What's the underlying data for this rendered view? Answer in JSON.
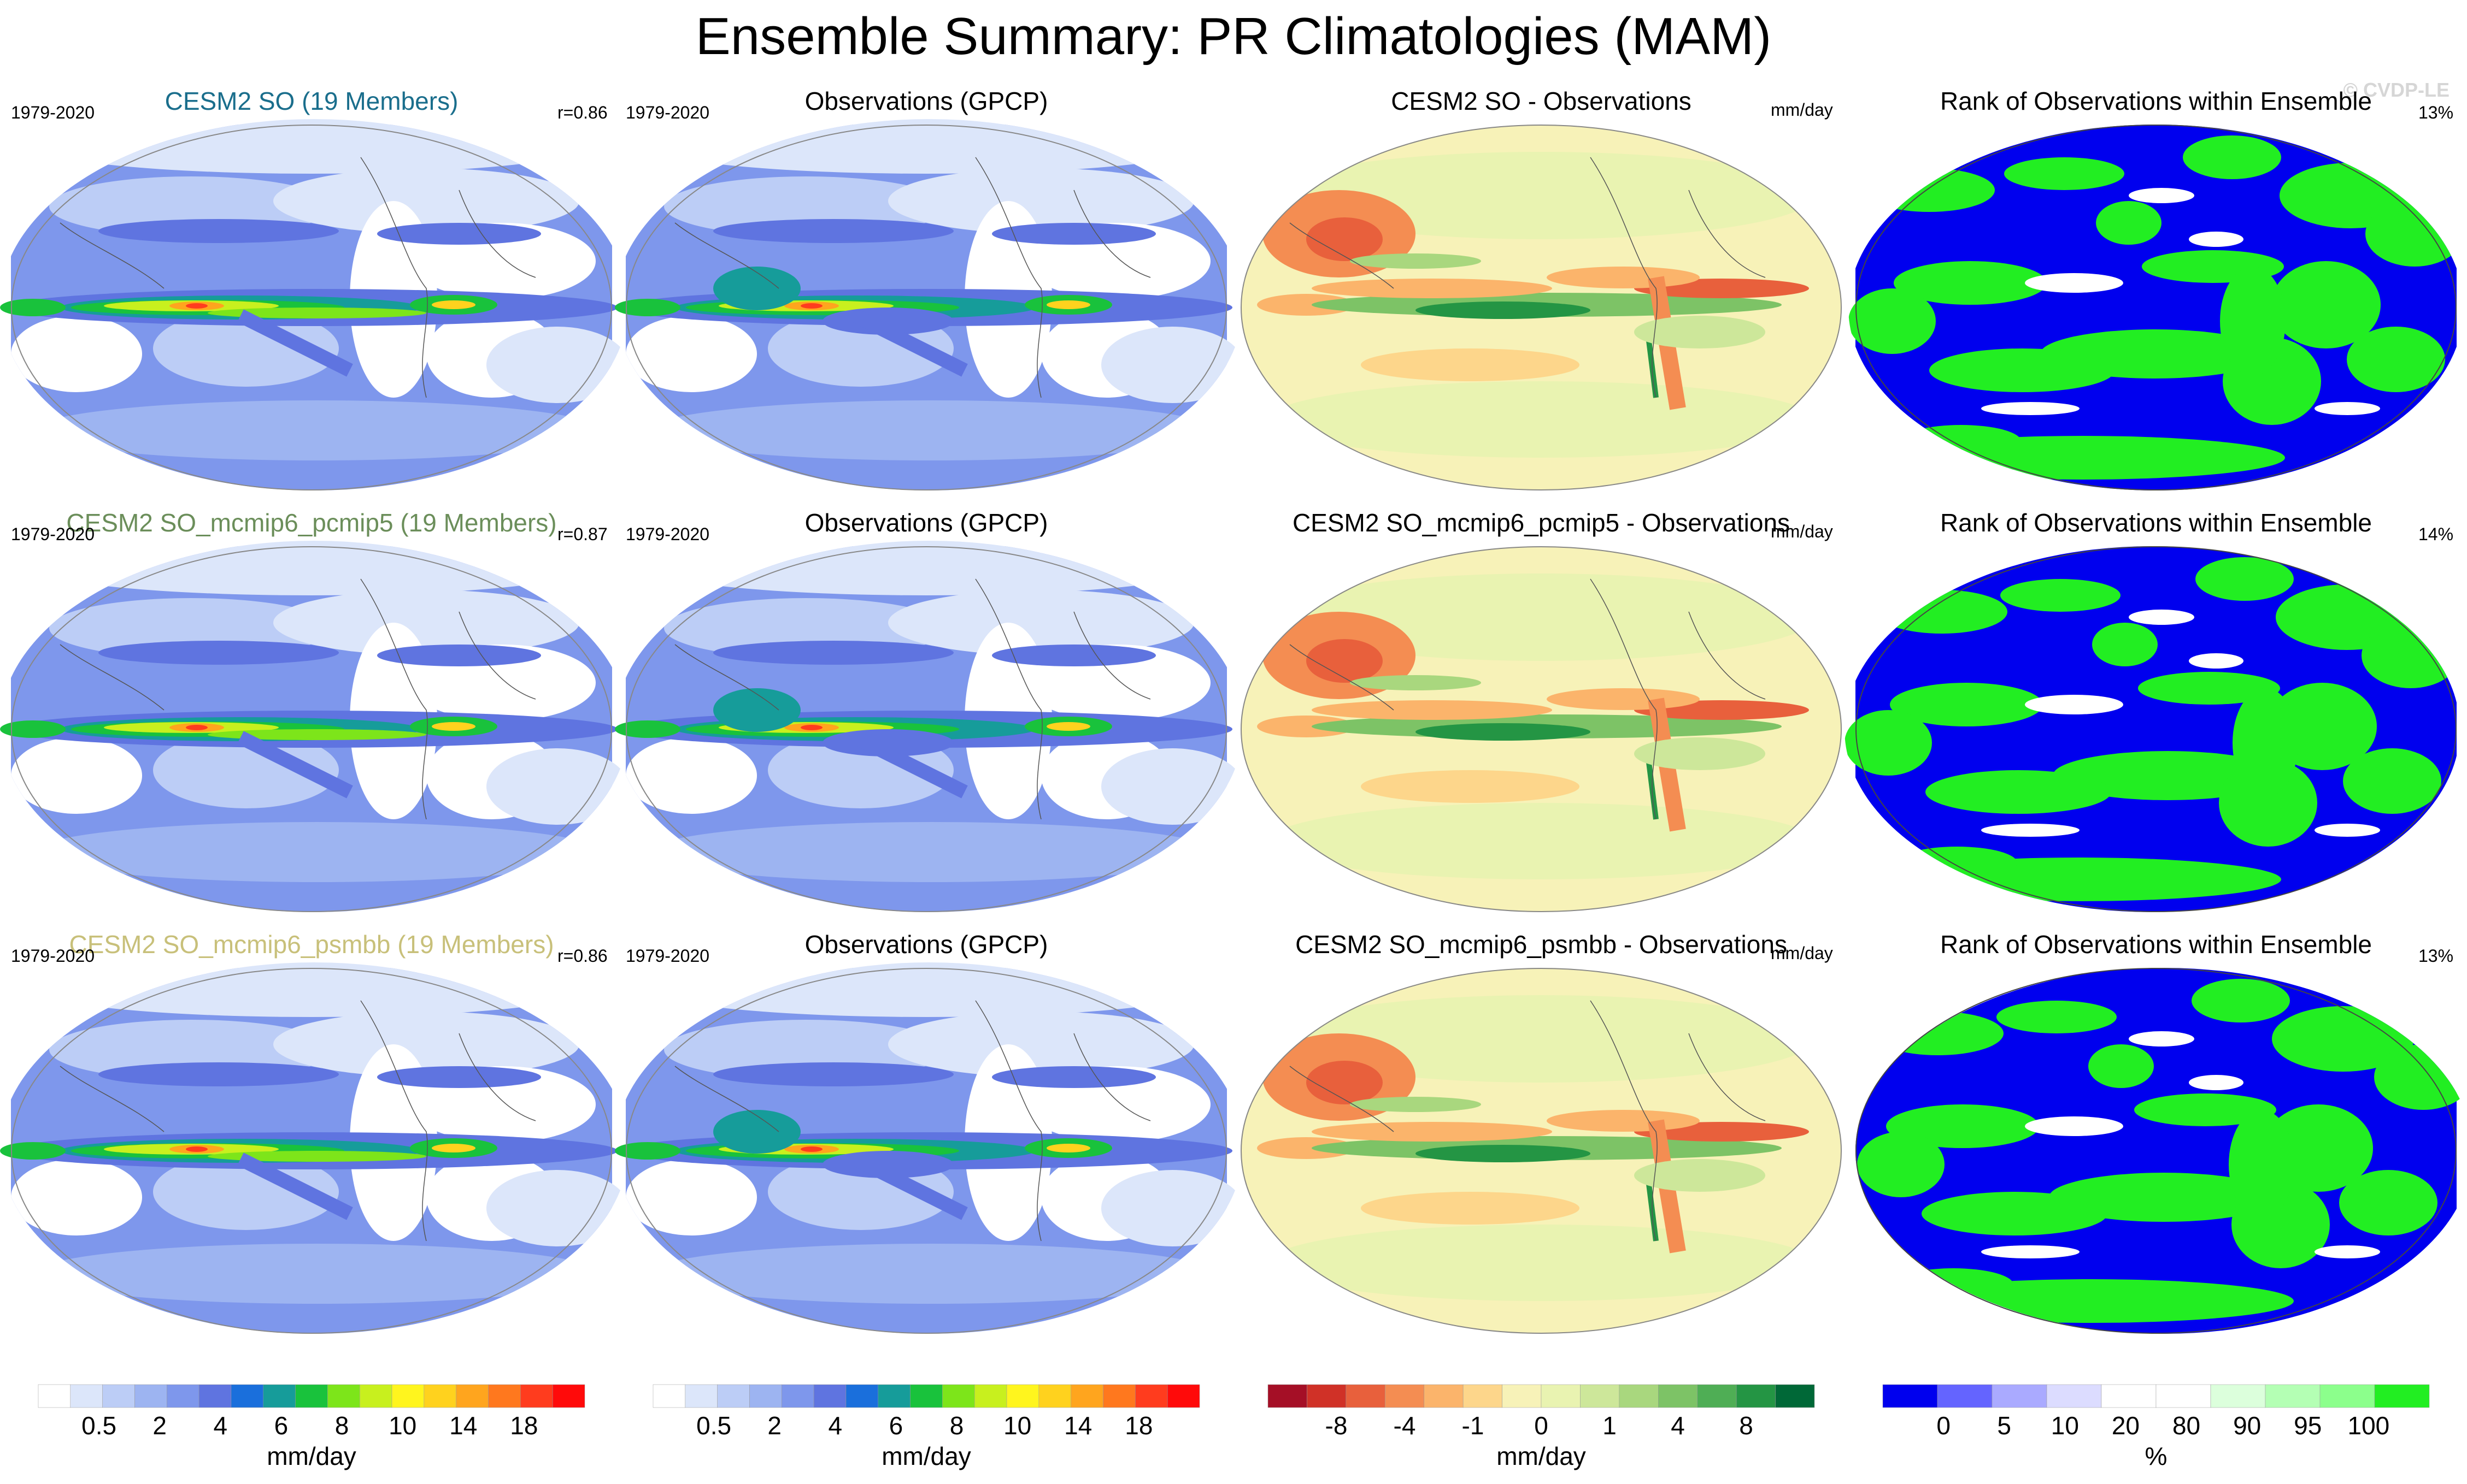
{
  "title": "Ensemble Summary: PR Climatologies (MAM)",
  "watermark": "© CVDP-LE",
  "colors": {
    "row_title_1": "#1a6e8c",
    "row_title_2": "#6b8e5a",
    "row_title_3": "#c8c07a",
    "rank_low": "#0000ee",
    "rank_mid": "#ffffff",
    "rank_high": "#22ee22",
    "diff_neutral": "#f7f2b8"
  },
  "rows": [
    {
      "model_title": "CESM2 SO (19 Members)",
      "model_years": "1979-2020",
      "model_corr": "r=0.86",
      "obs_title": "Observations (GPCP)",
      "obs_years": "1979-2020",
      "diff_title": "CESM2 SO - Observations",
      "diff_units": "mm/day",
      "rank_title": "Rank of Observations within Ensemble",
      "rank_pct": "13%"
    },
    {
      "model_title": "CESM2 SO_mcmip6_pcmip5 (19 Members)",
      "model_years": "1979-2020",
      "model_corr": "r=0.87",
      "obs_title": "Observations (GPCP)",
      "obs_years": "1979-2020",
      "diff_title": "CESM2 SO_mcmip6_pcmip5 - Observations",
      "diff_units": "mm/day",
      "rank_title": "Rank of Observations within Ensemble",
      "rank_pct": "14%"
    },
    {
      "model_title": "CESM2 SO_mcmip6_psmbb (19 Members)",
      "model_years": "1979-2020",
      "model_corr": "r=0.86",
      "obs_title": "Observations (GPCP)",
      "obs_years": "1979-2020",
      "diff_title": "CESM2 SO_mcmip6_psmbb - Observations",
      "diff_units": "mm/day",
      "rank_title": "Rank of Observations within Ensemble",
      "rank_pct": "13%"
    }
  ],
  "colorbars": {
    "pr": {
      "colors": [
        "#ffffff",
        "#dce6fa",
        "#bccdf6",
        "#9db4f1",
        "#7e97ec",
        "#5f74e0",
        "#1a6fdc",
        "#169c9a",
        "#19c23c",
        "#7de51a",
        "#c8f01e",
        "#fff51e",
        "#ffd21e",
        "#ffa51e",
        "#ff781e",
        "#ff3c1e",
        "#ff0a0a"
      ],
      "ticks": [
        "0.5",
        "2",
        "4",
        "6",
        "8",
        "10",
        "14",
        "18"
      ],
      "units": "mm/day"
    },
    "diff": {
      "colors": [
        "#a50f26",
        "#d03127",
        "#e8603c",
        "#f48d52",
        "#fbb46b",
        "#fdd68b",
        "#f7f2b8",
        "#e9f3b1",
        "#cde79a",
        "#a9d77e",
        "#7dc366",
        "#4fae55",
        "#249544",
        "#006837"
      ],
      "ticks": [
        "-8",
        "-4",
        "-1",
        "0",
        "1",
        "4",
        "8"
      ],
      "units": "mm/day"
    },
    "rank": {
      "colors": [
        "#0000ee",
        "#6464ff",
        "#aaaaff",
        "#dcdcff",
        "#ffffff",
        "#ffffff",
        "#dcffdc",
        "#b4ffb4",
        "#8cff8c",
        "#22ee22"
      ],
      "ticks": [
        "0",
        "5",
        "10",
        "20",
        "80",
        "90",
        "95",
        "100"
      ],
      "units": "%"
    }
  }
}
